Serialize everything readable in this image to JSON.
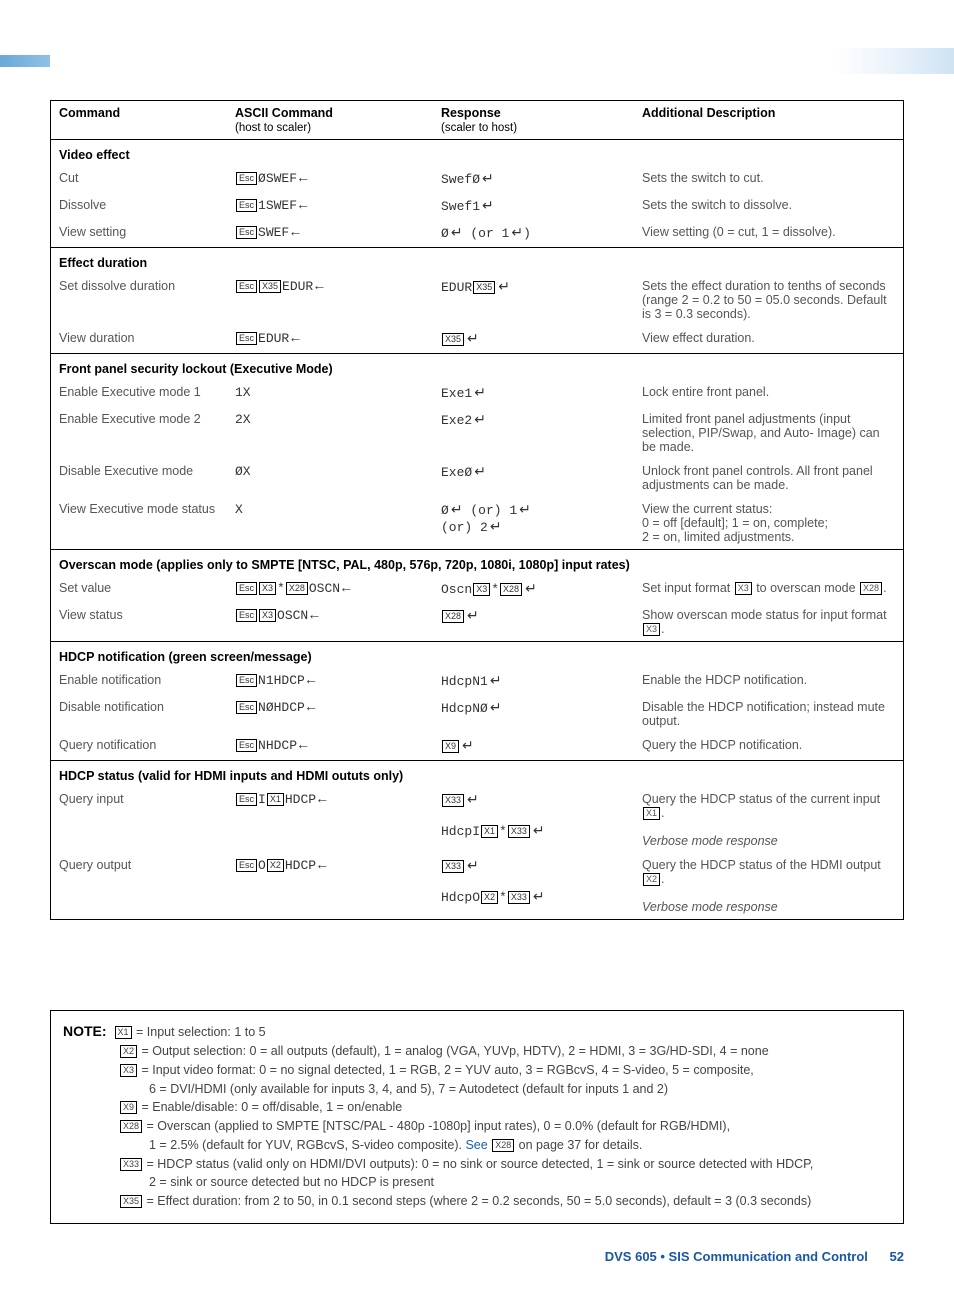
{
  "header": {
    "col1": "Command",
    "col2": "ASCII Command",
    "col2_sub": "(host to scaler)",
    "col3": "Response",
    "col3_sub": "(scaler to host)",
    "col4": "Additional Description"
  },
  "sections": {
    "video_effect": "Video effect",
    "effect_duration": "Effect duration",
    "exec_lockout": "Front panel security lockout (Executive Mode)",
    "overscan": "Overscan mode (applies only to SMPTE [NTSC, PAL, 480p, 576p, 720p, 1080i, 1080p] input rates)",
    "hdcp_notif": "HDCP notification (green screen/message)",
    "hdcp_status": "HDCP status (valid for HDMI inputs and HDMI oututs only)"
  },
  "rows": {
    "cut": {
      "c": "Cut",
      "a_pre": "Esc",
      "a_txt": "ØSWEF",
      "r": "SwefØ",
      "d": "Sets the switch to cut."
    },
    "dissolve": {
      "c": "Dissolve",
      "a_txt": "1SWEF",
      "r": "Swef1",
      "d": "Sets the switch to dissolve."
    },
    "view_setting": {
      "c": "View setting",
      "a_txt": "SWEF",
      "r": "Ø",
      "r_suffix": " (or 1",
      "r_tail": ")",
      "d": "View setting (0 = cut, 1 = dissolve)."
    },
    "set_dur": {
      "c": "Set dissolve duration",
      "a_txt": "EDUR",
      "r": "EDUR",
      "d": "Sets the effect duration to tenths of seconds (range 2 = 0.2 to 50 = 05.0 seconds. Default is 3 = 0.3 seconds)."
    },
    "view_dur": {
      "c": "View duration",
      "a_txt": "EDUR",
      "d": "View effect duration."
    },
    "exec1": {
      "c": "Enable Executive mode 1",
      "a": "1X",
      "r": "Exe1",
      "d": "Lock entire front panel."
    },
    "exec2": {
      "c": "Enable Executive mode 2",
      "a": "2X",
      "r": "Exe2",
      "d": "Limited front panel adjustments (input selection, PIP/Swap, and Auto- Image) can be made."
    },
    "exec_dis": {
      "c": "Disable Executive mode",
      "a": "ØX",
      "r": "ExeØ",
      "d": "Unlock front panel controls. All front panel adjustments can be made."
    },
    "exec_view": {
      "c": "View Executive mode status",
      "a": "X",
      "r1": "Ø",
      "r2": " (or) 1",
      "r3": "(or) 2",
      "d": "View the current status:\n0 = off [default]; 1 = on, complete;\n2 = on, limited adjustments."
    },
    "oscn_set": {
      "c": "Set value",
      "a_txt": "OSCN",
      "r": "Oscn",
      "d": "Set input format ",
      "d2": " to overscan mode ",
      "d3": "."
    },
    "oscn_view": {
      "c": "View status",
      "a_txt": "OSCN",
      "d": "Show overscan mode status for input format ",
      "d2": "."
    },
    "hdcp_en": {
      "c": "Enable notification",
      "a_txt": "N1HDCP",
      "r": "HdcpN1",
      "d": "Enable the HDCP notification."
    },
    "hdcp_dis": {
      "c": "Disable notification",
      "a_txt": "NØHDCP",
      "r": "HdcpNØ",
      "d": "Disable the HDCP notification; instead mute output."
    },
    "hdcp_q": {
      "c": "Query notification",
      "a_txt": "NHDCP",
      "d": "Query the HDCP notification."
    },
    "hdcp_qi": {
      "c": "Query input",
      "a_txt": "HDCP",
      "r": "HdcpI",
      "d": "Query the HDCP status of the current input ",
      "d2": ".",
      "v": "Verbose mode response"
    },
    "hdcp_qo": {
      "c": "Query output",
      "a_txt": "HDCP",
      "r": "HdcpO",
      "d": "Query the HDCP status of the HDMI output ",
      "d2": ".",
      "v": "Verbose mode response"
    }
  },
  "keys": {
    "esc": "Esc",
    "x1": "X1",
    "x2": "X2",
    "x3": "X3",
    "x9": "X9",
    "x28": "X28",
    "x33": "X33",
    "x35": "X35"
  },
  "note": {
    "label": "NOTE:",
    "l1": " = Input selection: 1 to 5",
    "l2": " = Output selection: 0 = all outputs (default), 1 = analog (VGA, YUVp, HDTV), 2 = HDMI, 3 = 3G/HD-SDI, 4 = none",
    "l3": " = Input video format: 0 = no signal detected, 1 = RGB, 2 = YUV auto, 3 = RGBcvS, 4 = S-video, 5 = composite,",
    "l3b": "6 = DVI/HDMI (only available for inputs 3, 4, and 5), 7 = Autodetect (default for inputs 1 and 2)",
    "l4": " = Enable/disable: 0 = off/disable, 1 = on/enable",
    "l5": " = Overscan (applied to SMPTE [NTSC/PAL - 480p -1080p] input rates), 0 = 0.0% (default for RGB/HDMI),",
    "l5b_a": "1 = 2.5% (default for YUV, RGBcvS, S-video composite). ",
    "l5b_see": "See ",
    "l5b_tail": " on page 37 for details.",
    "l6": " = HDCP status (valid only on HDMI/DVI outputs): 0 = no sink or source detected, 1 = sink or source detected with HDCP,",
    "l6b": "2 = sink or source detected but no HDCP is present",
    "l7": " = Effect duration: from 2 to 50, in 0.1 second steps (where 2 = 0.2 seconds, 50 = 5.0 seconds), default = 3 (0.3 seconds)"
  },
  "footer": {
    "text": "DVS 605 • SIS Communication and Control",
    "page": "52"
  }
}
